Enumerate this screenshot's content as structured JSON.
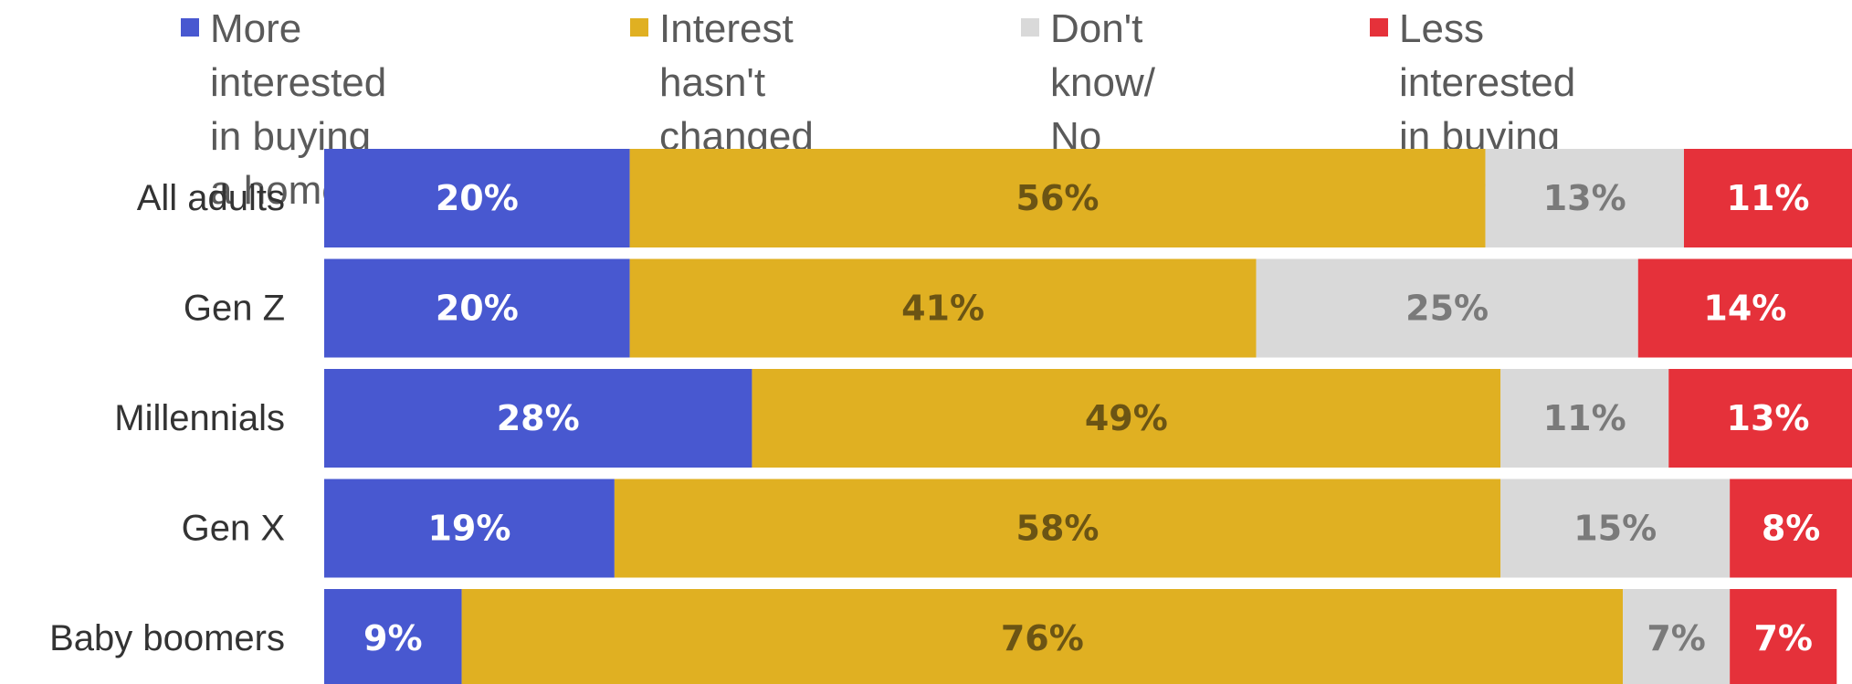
{
  "chart_data": {
    "type": "bar",
    "orientation": "horizontal",
    "stacked": true,
    "normalized_to_percent": true,
    "title": "",
    "xlabel": "",
    "ylabel": "",
    "xlim": [
      0,
      100
    ],
    "grid": false,
    "legend_position": "top",
    "categories": [
      "All adults",
      "Gen Z",
      "Millennials",
      "Gen X",
      "Baby boomers"
    ],
    "series": [
      {
        "name": "More interested\nin buying a home",
        "color": "#4858d0",
        "label_color": "#ffffff",
        "values": [
          20,
          20,
          28,
          19,
          9
        ],
        "labels": [
          "20%",
          "20%",
          "28%",
          "19%",
          "9%"
        ]
      },
      {
        "name": "Interest hasn't\nchanged",
        "color": "#e0b022",
        "label_color": "#6b5414",
        "values": [
          56,
          41,
          49,
          58,
          76
        ],
        "labels": [
          "56%",
          "41%",
          "49%",
          "58%",
          "76%"
        ]
      },
      {
        "name": "Don't know/\nNo opinion",
        "color": "#d9d9d9",
        "label_color": "#7a7a7a",
        "values": [
          13,
          25,
          11,
          15,
          7
        ],
        "labels": [
          "13%",
          "25%",
          "11%",
          "15%",
          "7%"
        ]
      },
      {
        "name": "Less interested\nin buying a home",
        "color": "#e5313a",
        "label_color": "#ffffff",
        "values": [
          11,
          14,
          13,
          8,
          7
        ],
        "labels": [
          "11%",
          "14%",
          "13%",
          "8%",
          "7%"
        ]
      }
    ]
  }
}
